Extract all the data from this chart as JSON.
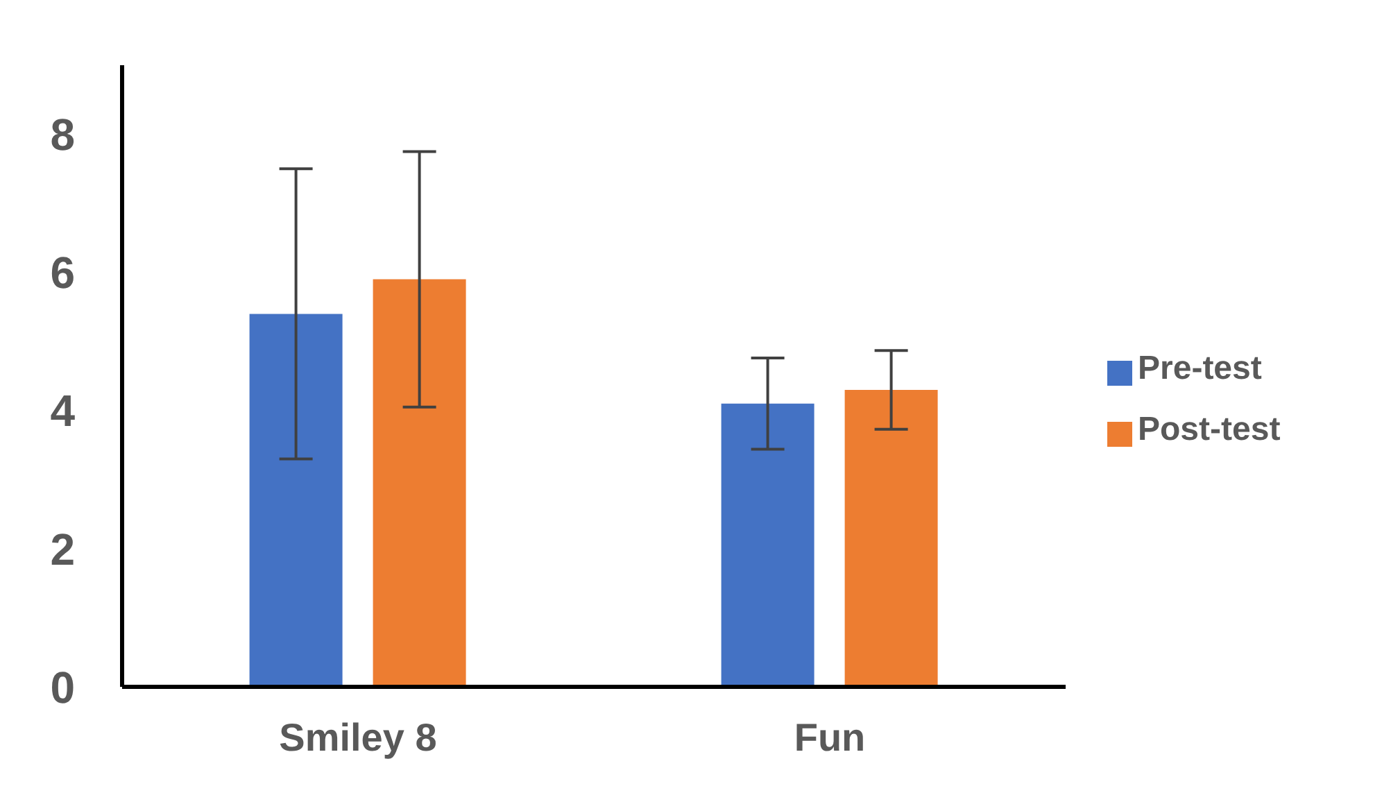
{
  "chart_data": {
    "type": "bar",
    "categories": [
      "Smiley 8",
      "Fun"
    ],
    "series": [
      {
        "name": "Pre-test",
        "color": "#4472c4",
        "values": [
          5.4,
          4.1
        ],
        "errors": [
          2.1,
          0.66
        ]
      },
      {
        "name": "Post-test",
        "color": "#ed7d31",
        "values": [
          5.9,
          4.3
        ],
        "errors": [
          1.85,
          0.57
        ]
      }
    ],
    "ylim": [
      0,
      9
    ],
    "yticks": [
      0,
      2,
      4,
      6,
      8
    ],
    "grid": false,
    "legend": "right"
  }
}
